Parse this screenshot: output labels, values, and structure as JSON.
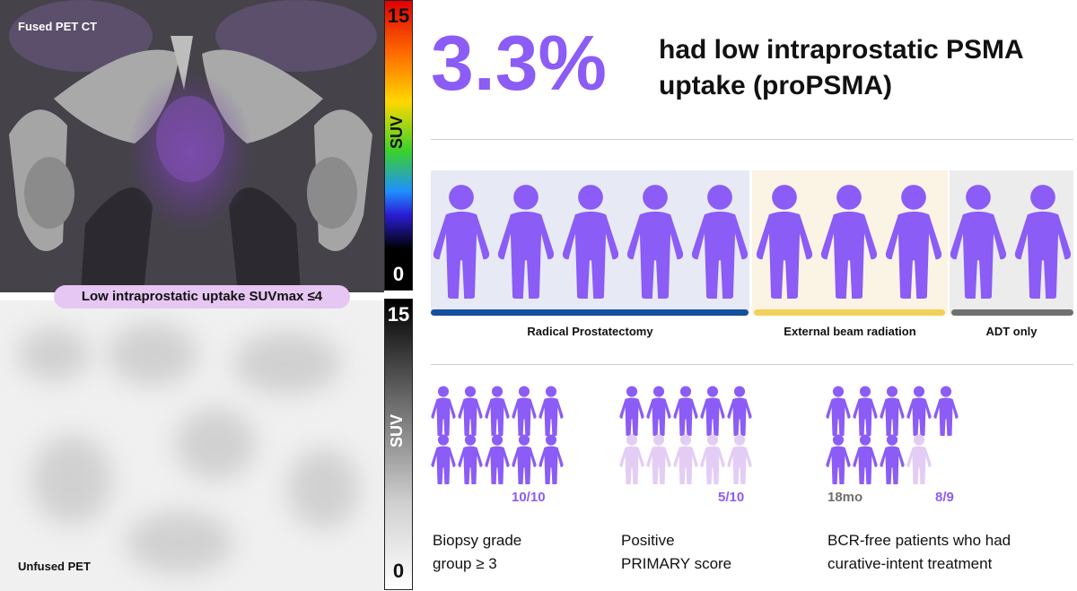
{
  "images": {
    "fused_label": "Fused PET CT",
    "unfused_label": "Unfused PET",
    "pill_label": "Low intraprostatic uptake SUVmax ≤4",
    "color_scale": {
      "max": "15",
      "min": "0",
      "unit": "SUV"
    },
    "gray_scale": {
      "max": "15",
      "min": "0",
      "unit": "SUV"
    }
  },
  "headline": {
    "percent": "3.3%",
    "text": "had low intraprostatic PSMA uptake (proPSMA)"
  },
  "treatment_groups": [
    {
      "label": "Radical Prostatectomy",
      "count": 5,
      "color": "#174f9f",
      "background": "#e7eaf5"
    },
    {
      "label": "External beam radiation",
      "count": 3,
      "color": "#f2d15a",
      "background": "#fbf3e3"
    },
    {
      "label": "ADT only",
      "count": 2,
      "color": "#707070",
      "background": "#ececec"
    }
  ],
  "stats": [
    {
      "value": "10/10",
      "positive": 10,
      "total": 10,
      "caption_lines": [
        "Biopsy grade",
        "group ≥ 3"
      ]
    },
    {
      "value": "5/10",
      "positive": 5,
      "total": 10,
      "caption_lines": [
        "Positive",
        "PRIMARY score"
      ]
    },
    {
      "value": "8/9",
      "positive": 8,
      "total": 9,
      "extra_label": "18mo",
      "caption_lines": [
        "BCR-free patients who had",
        "curative-intent treatment"
      ]
    }
  ],
  "colors": {
    "accent": "#8b5cf6",
    "person": "#8b5cf6",
    "person_faded": "#e3cdf5",
    "pill": "#e6c6f3"
  },
  "icons": {
    "person": "person-icon"
  }
}
